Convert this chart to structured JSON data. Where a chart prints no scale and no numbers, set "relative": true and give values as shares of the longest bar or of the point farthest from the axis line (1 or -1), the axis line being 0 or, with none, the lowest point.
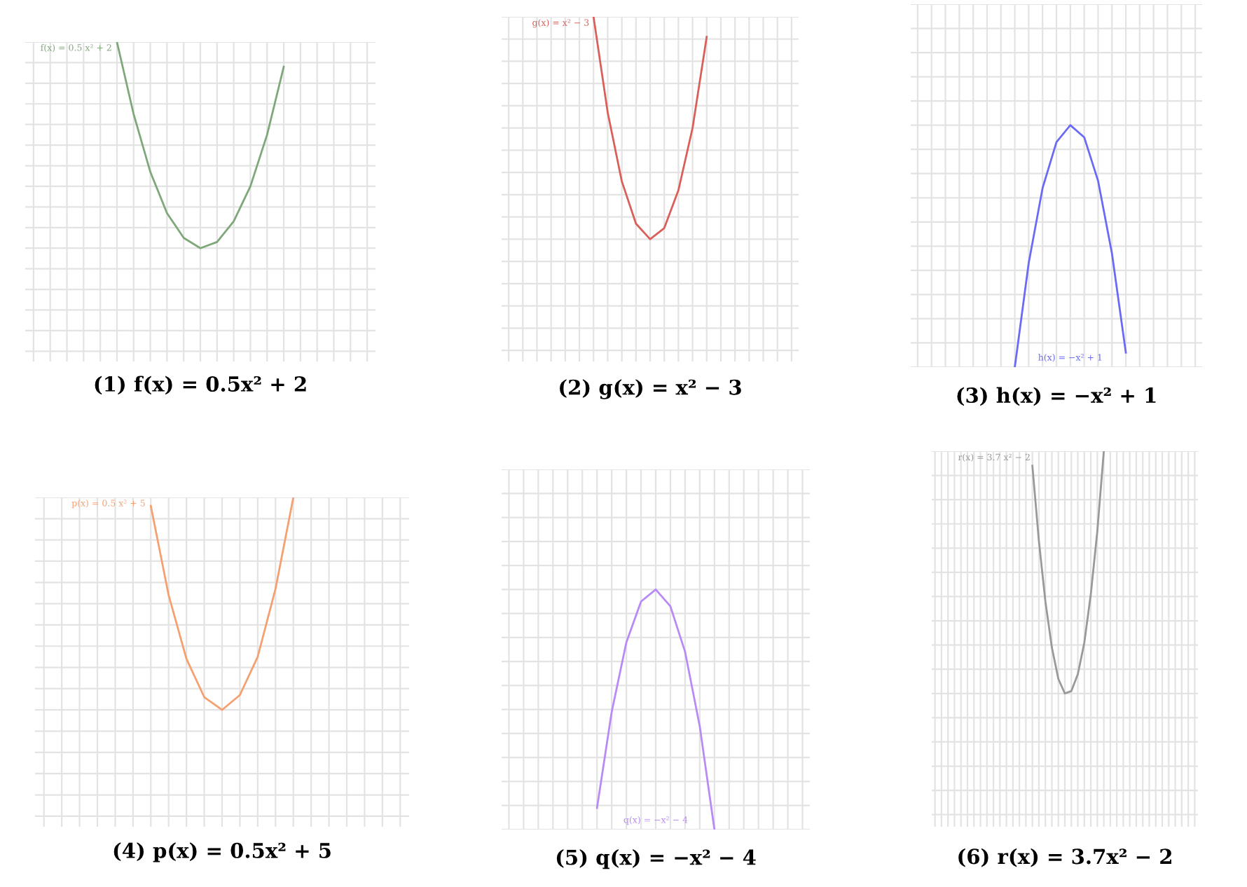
{
  "chart_data": [
    {
      "type": "line",
      "title": "(1) f(x) = 0.5x² + 2",
      "relative": true,
      "grid": true,
      "annotations": [
        "f(x) = 0.5 x² + 2"
      ],
      "categories": [
        null,
        null,
        null,
        null,
        null,
        null,
        null,
        null,
        null,
        null,
        null,
        null,
        null,
        null,
        null,
        null,
        null,
        null,
        null,
        null,
        null
      ],
      "series": [
        {
          "color": "#7fa87a",
          "values": [
            null,
            null,
            null,
            null,
            null,
            1.0,
            0.65,
            0.37,
            0.17,
            0.05,
            0.0,
            0.03,
            0.13,
            0.3,
            0.55,
            0.88,
            null,
            null,
            null,
            null,
            null
          ]
        }
      ]
    },
    {
      "type": "line",
      "title": "(2) g(x) = x² − 3",
      "relative": true,
      "grid": true,
      "annotations": [
        "g(x) = x² − 3"
      ],
      "categories": [
        null,
        null,
        null,
        null,
        null,
        null,
        null,
        null,
        null,
        null,
        null,
        null,
        null,
        null,
        null,
        null,
        null,
        null,
        null,
        null,
        null
      ],
      "series": [
        {
          "color": "#d9605a",
          "values": [
            null,
            null,
            null,
            null,
            null,
            null,
            1.0,
            0.57,
            0.26,
            0.07,
            0.0,
            0.05,
            0.22,
            0.5,
            0.91,
            null,
            null,
            null,
            null,
            null,
            null
          ]
        }
      ]
    },
    {
      "type": "line",
      "title": "(3) h(x) = −x² + 1",
      "relative": true,
      "grid": true,
      "annotations": [
        "h(x) = −x² + 1"
      ],
      "categories": [
        null,
        null,
        null,
        null,
        null,
        null,
        null,
        null,
        null,
        null,
        null,
        null,
        null,
        null,
        null,
        null,
        null,
        null,
        null,
        null,
        null
      ],
      "series": [
        {
          "color": "#6a6af5",
          "values": [
            null,
            null,
            null,
            null,
            null,
            null,
            null,
            0.0,
            0.43,
            0.74,
            0.93,
            1.0,
            0.95,
            0.77,
            0.47,
            0.06,
            null,
            null,
            null,
            null,
            null
          ]
        }
      ]
    },
    {
      "type": "line",
      "title": "(4) p(x) = 0.5x² + 5",
      "relative": true,
      "grid": true,
      "annotations": [
        "p(x) = 0.5 x² + 5"
      ],
      "categories": [
        null,
        null,
        null,
        null,
        null,
        null,
        null,
        null,
        null,
        null,
        null,
        null,
        null,
        null,
        null,
        null,
        null,
        null,
        null,
        null,
        null
      ],
      "series": [
        {
          "color": "#f5a070",
          "values": [
            null,
            null,
            null,
            null,
            null,
            null,
            0.96,
            0.54,
            0.24,
            0.06,
            0.0,
            0.07,
            0.25,
            0.57,
            1.0,
            null,
            null,
            null,
            null,
            null,
            null
          ]
        }
      ]
    },
    {
      "type": "line",
      "title": "(5) q(x) = −x² − 4",
      "relative": true,
      "grid": true,
      "annotations": [
        "q(x) = −x² − 4"
      ],
      "categories": [
        null,
        null,
        null,
        null,
        null,
        null,
        null,
        null,
        null,
        null,
        null,
        null,
        null,
        null,
        null,
        null,
        null,
        null,
        null,
        null,
        null
      ],
      "series": [
        {
          "color": "#b98af5",
          "values": [
            null,
            null,
            null,
            null,
            null,
            null,
            0.09,
            0.49,
            0.78,
            0.95,
            1.0,
            0.93,
            0.74,
            0.43,
            0.0,
            null,
            null,
            null,
            null,
            null,
            null
          ]
        }
      ]
    },
    {
      "type": "line",
      "title": "(6) r(x) = 3.7x² − 2",
      "relative": true,
      "grid": true,
      "annotations": [
        "r(x) = 3.7 x² − 2"
      ],
      "categories": [
        null,
        null,
        null,
        null,
        null,
        null,
        null,
        null,
        null,
        null,
        null,
        null,
        null,
        null,
        null,
        null,
        null,
        null,
        null,
        null,
        null,
        null,
        null,
        null,
        null,
        null,
        null,
        null,
        null,
        null,
        null,
        null,
        null,
        null,
        null,
        null,
        null,
        null,
        null,
        null,
        null
      ],
      "series": [
        {
          "color": "#999999",
          "values": [
            null,
            null,
            null,
            null,
            null,
            null,
            null,
            null,
            null,
            null,
            null,
            null,
            null,
            null,
            null,
            0.94,
            0.63,
            0.38,
            0.19,
            0.06,
            0.0,
            0.01,
            0.08,
            0.21,
            0.41,
            0.67,
            1.0,
            null,
            null,
            null,
            null,
            null,
            null,
            null,
            null,
            null,
            null,
            null,
            null,
            null,
            null
          ]
        }
      ]
    }
  ]
}
